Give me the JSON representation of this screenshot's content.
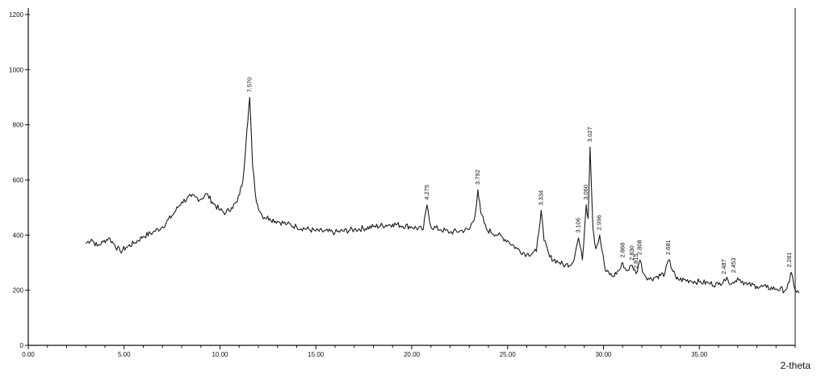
{
  "chart_data": {
    "type": "line",
    "title": "",
    "xlabel": "2-theta",
    "ylabel": "",
    "xlim": [
      0,
      40
    ],
    "ylim": [
      0,
      1200
    ],
    "grid": false,
    "colors": {
      "line": "#1a1a1a",
      "axis": "#111111",
      "background": "#ffffff"
    },
    "x_ticks": [
      0,
      5,
      10,
      15,
      20,
      25,
      30,
      35
    ],
    "x_tick_labels": [
      "0.00",
      "5.00",
      "10.00",
      "15.00",
      "20.00",
      "25.00",
      "30.00",
      "35.00"
    ],
    "y_ticks": [
      0,
      200,
      400,
      600,
      800,
      1000,
      1200
    ],
    "y_tick_labels": [
      "0",
      "200",
      "400",
      "600",
      "800",
      "1000",
      "1200"
    ],
    "series": [
      {
        "x": [
          3.0,
          3.3,
          3.6,
          3.9,
          4.2,
          4.5,
          4.8,
          5.1,
          5.5,
          6.0,
          6.5,
          7.0,
          7.5,
          8.0,
          8.5,
          9.0,
          9.3,
          9.6,
          10.0,
          10.3,
          10.6,
          10.9,
          11.2,
          11.4,
          11.55,
          11.7,
          11.9,
          12.2,
          12.6,
          13.0,
          13.5,
          14.0,
          15.0,
          16.0,
          17.0,
          18.0,
          19.0,
          20.0,
          20.6,
          20.8,
          21.0,
          21.5,
          22.0,
          22.5,
          23.0,
          23.3,
          23.45,
          23.6,
          23.9,
          24.5,
          25.0,
          25.5,
          26.0,
          26.5,
          26.75,
          26.9,
          27.2,
          27.7,
          28.0,
          28.4,
          28.7,
          28.9,
          29.1,
          29.2,
          29.3,
          29.45,
          29.6,
          29.8,
          30.1,
          30.5,
          30.9,
          31.0,
          31.2,
          31.5,
          31.7,
          31.9,
          32.1,
          32.4,
          32.8,
          33.2,
          33.4,
          33.8,
          34.5,
          35.0,
          35.5,
          36.0,
          36.3,
          36.5,
          36.8,
          37.0,
          37.5,
          38.0,
          38.5,
          39.0,
          39.5,
          39.7,
          39.8,
          40.0,
          40.2
        ],
        "y": [
          370,
          385,
          360,
          375,
          390,
          365,
          340,
          355,
          370,
          395,
          410,
          430,
          470,
          520,
          540,
          530,
          550,
          520,
          490,
          480,
          500,
          520,
          600,
          780,
          900,
          650,
          520,
          470,
          460,
          450,
          440,
          430,
          415,
          410,
          420,
          430,
          440,
          430,
          420,
          510,
          430,
          420,
          410,
          415,
          420,
          470,
          565,
          480,
          420,
          400,
          380,
          350,
          330,
          340,
          490,
          380,
          320,
          300,
          290,
          300,
          390,
          310,
          510,
          460,
          720,
          430,
          350,
          400,
          270,
          250,
          280,
          300,
          270,
          290,
          260,
          310,
          260,
          240,
          250,
          260,
          310,
          240,
          235,
          230,
          225,
          220,
          240,
          235,
          225,
          245,
          220,
          215,
          210,
          205,
          200,
          230,
          265,
          200,
          190
        ]
      }
    ],
    "annotations": [
      {
        "x": 11.55,
        "y": 900,
        "label": "7.570"
      },
      {
        "x": 20.8,
        "y": 510,
        "label": "4.275"
      },
      {
        "x": 23.45,
        "y": 565,
        "label": "3.792"
      },
      {
        "x": 26.75,
        "y": 490,
        "label": "3.334"
      },
      {
        "x": 28.7,
        "y": 390,
        "label": "3.106"
      },
      {
        "x": 29.1,
        "y": 510,
        "label": "3.060"
      },
      {
        "x": 29.3,
        "y": 720,
        "label": "3.027"
      },
      {
        "x": 29.8,
        "y": 400,
        "label": "2.996"
      },
      {
        "x": 31.0,
        "y": 300,
        "label": "2.868"
      },
      {
        "x": 31.5,
        "y": 290,
        "label": "2.830"
      },
      {
        "x": 31.7,
        "y": 260,
        "label": "2.815"
      },
      {
        "x": 31.9,
        "y": 310,
        "label": "2.808"
      },
      {
        "x": 33.4,
        "y": 310,
        "label": "2.681"
      },
      {
        "x": 36.3,
        "y": 240,
        "label": "2.487"
      },
      {
        "x": 36.8,
        "y": 245,
        "label": "2.453"
      },
      {
        "x": 39.7,
        "y": 265,
        "label": "2.281"
      }
    ]
  }
}
